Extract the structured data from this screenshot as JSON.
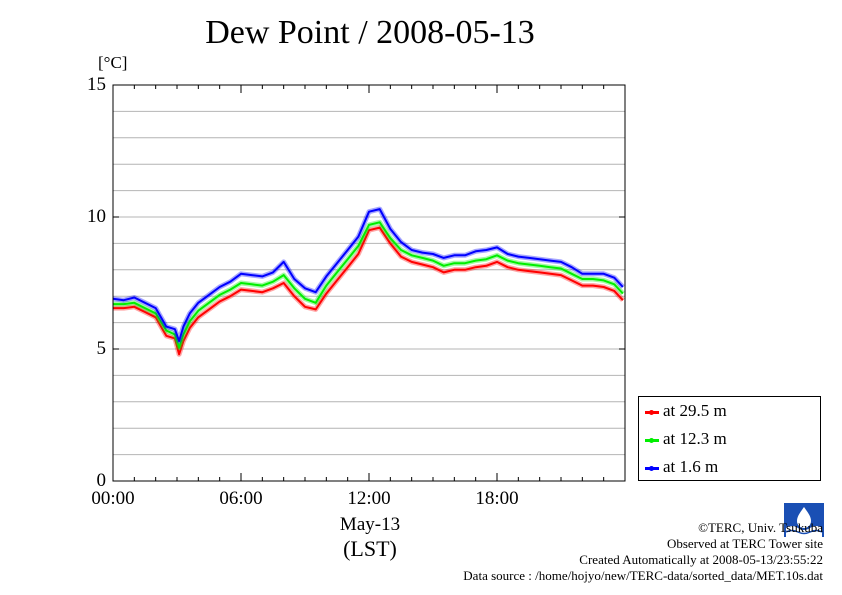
{
  "title": "Dew Point / 2008-05-13",
  "unit_label": "[°C]",
  "date_label": "May-13",
  "timezone_label": "(LST)",
  "credits": {
    "copyright": "©TERC, Univ. Tsukuba",
    "observed": "Observed at TERC Tower site",
    "created": "Created Automatically at 2008-05-13/23:55:22",
    "source": "Data source : /home/hojyo/new/TERC-data/sorted_data/MET.10s.dat"
  },
  "logo_icon": "terc-logo-icon",
  "chart_data": {
    "type": "line",
    "title": "Dew Point / 2008-05-13",
    "ylabel": "[°C]",
    "xlabel": "May-13 (LST)",
    "xlim": [
      0,
      24
    ],
    "ylim": [
      0,
      15
    ],
    "x_ticks": [
      {
        "value": 0,
        "label": "00:00"
      },
      {
        "value": 6,
        "label": "06:00"
      },
      {
        "value": 12,
        "label": "12:00"
      },
      {
        "value": 18,
        "label": "18:00"
      }
    ],
    "y_ticks": [
      {
        "value": 0,
        "label": "0"
      },
      {
        "value": 5,
        "label": "5"
      },
      {
        "value": 10,
        "label": "10"
      },
      {
        "value": 15,
        "label": "15"
      }
    ],
    "grid": true,
    "legend_position": "right-bottom",
    "x": [
      0,
      0.5,
      1,
      1.5,
      2,
      2.5,
      2.9,
      3.1,
      3.3,
      3.6,
      4,
      4.5,
      5,
      5.5,
      6,
      6.5,
      7,
      7.5,
      8,
      8.5,
      9,
      9.5,
      10,
      10.5,
      11,
      11.5,
      12,
      12.5,
      13,
      13.5,
      14,
      14.5,
      15,
      15.5,
      16,
      16.5,
      17,
      17.5,
      18,
      18.5,
      19,
      19.5,
      20,
      20.5,
      21,
      21.5,
      22,
      22.5,
      23,
      23.5,
      23.9
    ],
    "series": [
      {
        "name": "at 29.5 m",
        "color": "#ff0000",
        "values": [
          6.55,
          6.55,
          6.6,
          6.4,
          6.2,
          5.5,
          5.4,
          4.8,
          5.3,
          5.8,
          6.2,
          6.5,
          6.8,
          7.0,
          7.25,
          7.2,
          7.15,
          7.3,
          7.5,
          7.0,
          6.6,
          6.5,
          7.1,
          7.6,
          8.1,
          8.6,
          9.5,
          9.6,
          9.0,
          8.5,
          8.3,
          8.2,
          8.1,
          7.9,
          8.0,
          8.0,
          8.1,
          8.15,
          8.3,
          8.1,
          8.0,
          7.95,
          7.9,
          7.85,
          7.8,
          7.6,
          7.4,
          7.4,
          7.35,
          7.2,
          6.85
        ]
      },
      {
        "name": "at 12.3 m",
        "color": "#00ee00",
        "values": [
          6.7,
          6.7,
          6.75,
          6.55,
          6.35,
          5.7,
          5.55,
          5.05,
          5.55,
          6.05,
          6.45,
          6.75,
          7.05,
          7.25,
          7.5,
          7.45,
          7.4,
          7.55,
          7.8,
          7.3,
          6.9,
          6.75,
          7.4,
          7.9,
          8.4,
          8.9,
          9.7,
          9.8,
          9.2,
          8.75,
          8.55,
          8.45,
          8.35,
          8.15,
          8.25,
          8.25,
          8.35,
          8.4,
          8.55,
          8.35,
          8.25,
          8.2,
          8.15,
          8.1,
          8.05,
          7.85,
          7.65,
          7.65,
          7.6,
          7.45,
          7.1
        ]
      },
      {
        "name": "at 1.6 m",
        "color": "#0000ff",
        "values": [
          6.9,
          6.85,
          6.95,
          6.75,
          6.55,
          5.85,
          5.75,
          5.3,
          5.85,
          6.35,
          6.75,
          7.05,
          7.35,
          7.55,
          7.85,
          7.8,
          7.75,
          7.9,
          8.3,
          7.65,
          7.3,
          7.15,
          7.75,
          8.25,
          8.75,
          9.25,
          10.2,
          10.3,
          9.55,
          9.05,
          8.75,
          8.65,
          8.6,
          8.45,
          8.55,
          8.55,
          8.7,
          8.75,
          8.85,
          8.6,
          8.5,
          8.45,
          8.4,
          8.35,
          8.3,
          8.1,
          7.85,
          7.85,
          7.85,
          7.7,
          7.35
        ]
      }
    ]
  }
}
